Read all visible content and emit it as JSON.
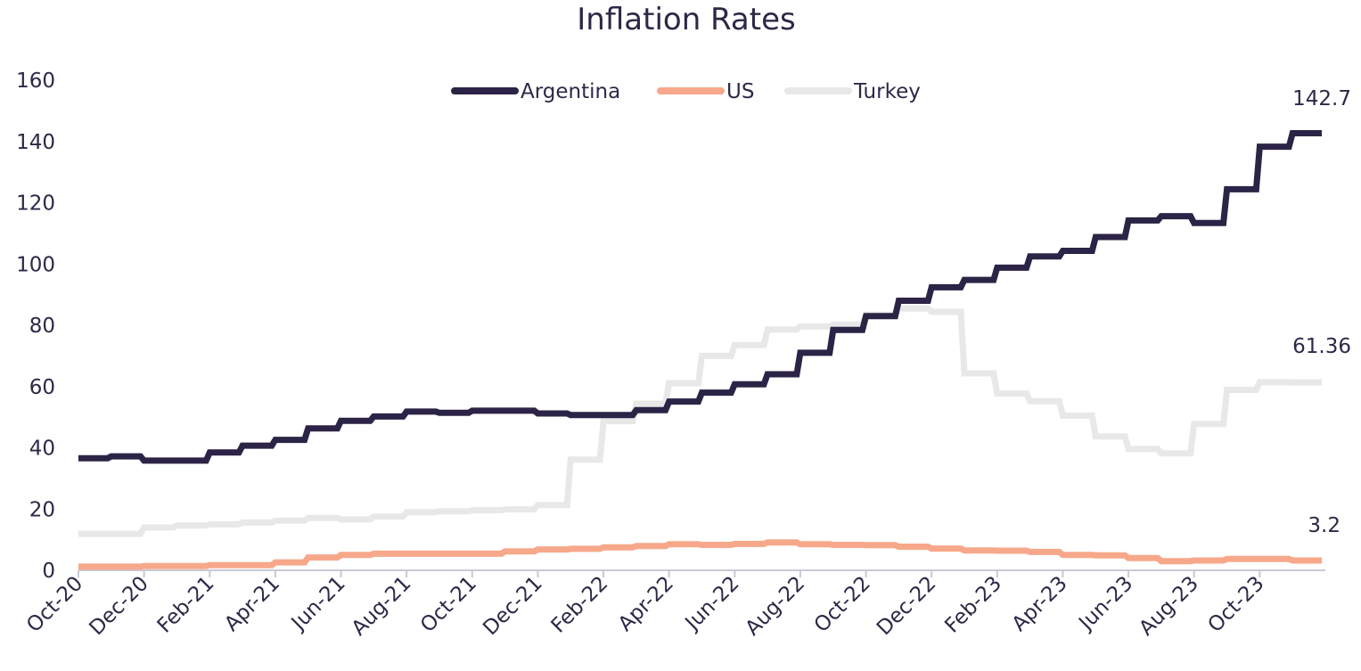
{
  "chart_data": {
    "type": "line",
    "title": "Inflation Rates",
    "xlabel": "",
    "ylabel": "",
    "ylim": [
      0,
      160
    ],
    "yticks": [
      "0",
      "20",
      "40",
      "60",
      "80",
      "100",
      "120",
      "140",
      "160"
    ],
    "xtick_labels": [
      "Oct-20",
      "Dec-20",
      "Feb-21",
      "Apr-21",
      "Jun-21",
      "Aug-21",
      "Oct-21",
      "Dec-21",
      "Feb-22",
      "Apr-22",
      "Jun-22",
      "Aug-22",
      "Oct-22",
      "Dec-22",
      "Feb-23",
      "Apr-23",
      "Jun-23",
      "Aug-23",
      "Oct-23"
    ],
    "x": [
      "Oct-20",
      "Nov-20",
      "Dec-20",
      "Jan-21",
      "Feb-21",
      "Mar-21",
      "Apr-21",
      "May-21",
      "Jun-21",
      "Jul-21",
      "Aug-21",
      "Sep-21",
      "Oct-21",
      "Nov-21",
      "Dec-21",
      "Jan-22",
      "Feb-22",
      "Mar-22",
      "Apr-22",
      "May-22",
      "Jun-22",
      "Jul-22",
      "Aug-22",
      "Sep-22",
      "Oct-22",
      "Nov-22",
      "Dec-22",
      "Jan-23",
      "Feb-23",
      "Mar-23",
      "Apr-23",
      "May-23",
      "Jun-23",
      "Jul-23",
      "Aug-23",
      "Sep-23",
      "Oct-23",
      "Nov-23"
    ],
    "grid": false,
    "legend_position": "top-center",
    "series": [
      {
        "name": "Argentina",
        "color": "#2b2446",
        "values": [
          36.6,
          37.2,
          35.8,
          35.8,
          38.5,
          40.7,
          42.6,
          46.3,
          48.8,
          50.2,
          51.8,
          51.4,
          52.1,
          52.1,
          51.2,
          50.7,
          50.7,
          52.3,
          55.1,
          58.0,
          60.7,
          64.0,
          71.0,
          78.5,
          83.0,
          88.0,
          92.4,
          94.8,
          98.8,
          102.5,
          104.3,
          108.8,
          114.2,
          115.6,
          113.4,
          124.4,
          138.3,
          142.7
        ],
        "end_label": "142.7"
      },
      {
        "name": "US",
        "color": "#f7a88a",
        "values": [
          1.2,
          1.2,
          1.4,
          1.4,
          1.7,
          1.7,
          2.6,
          4.2,
          5.0,
          5.4,
          5.4,
          5.4,
          5.4,
          6.2,
          6.8,
          7.0,
          7.5,
          7.9,
          8.5,
          8.3,
          8.6,
          9.1,
          8.5,
          8.3,
          8.2,
          7.7,
          7.1,
          6.5,
          6.4,
          6.0,
          5.0,
          4.9,
          4.0,
          3.0,
          3.2,
          3.7,
          3.7,
          3.2
        ],
        "end_label": "3.2"
      },
      {
        "name": "Turkey",
        "color": "#e8e8e8",
        "values": [
          11.9,
          11.9,
          14.0,
          14.6,
          15.0,
          15.6,
          16.2,
          17.1,
          16.6,
          17.5,
          19.0,
          19.3,
          19.6,
          19.9,
          21.3,
          36.1,
          48.7,
          54.4,
          61.1,
          70.0,
          73.5,
          78.6,
          79.6,
          80.2,
          83.5,
          85.5,
          84.4,
          64.3,
          57.7,
          55.2,
          50.5,
          43.7,
          39.6,
          38.2,
          47.8,
          58.9,
          61.4,
          61.36
        ],
        "end_label": "61.36"
      }
    ]
  }
}
